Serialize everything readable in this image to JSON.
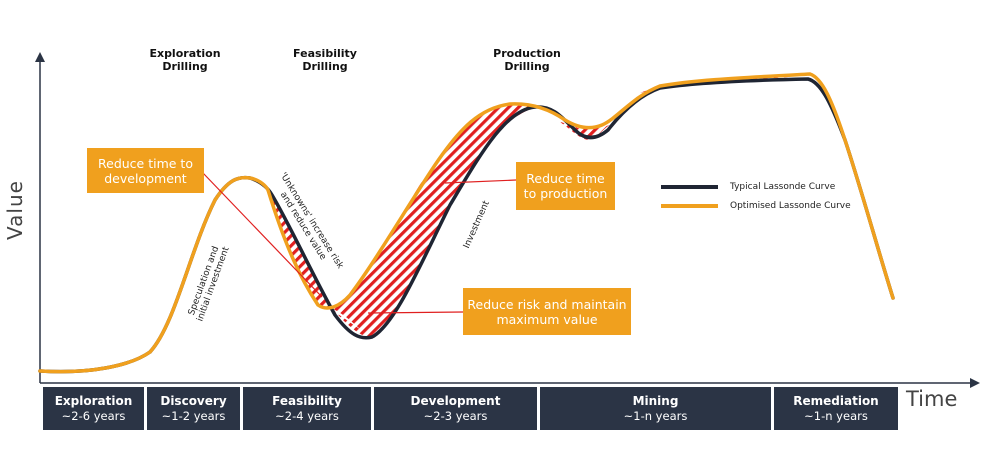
{
  "axis": {
    "y_label": "Value",
    "x_label": "Time"
  },
  "stages": {
    "exploration_drilling": "Exploration\nDrilling",
    "feasibility_drilling": "Feasibility\nDrilling",
    "production_drilling": "Production\nDrilling"
  },
  "phases": [
    {
      "name": "Exploration",
      "duration": "~2-6 years"
    },
    {
      "name": "Discovery",
      "duration": "~1-2 years"
    },
    {
      "name": "Feasibility",
      "duration": "~2-4 years"
    },
    {
      "name": "Development",
      "duration": "~2-3 years"
    },
    {
      "name": "Mining",
      "duration": "~1-n years"
    },
    {
      "name": "Remediation",
      "duration": "~1-n years"
    }
  ],
  "callouts": {
    "development": "Reduce time to\ndevelopment",
    "production": "Reduce time\nto production",
    "risk": "Reduce risk and maintain\nmaximum value"
  },
  "annotations": {
    "speculation": "Speculation and\ninitial investment",
    "unknowns": "'Unknowns' increase risk\nand reduce value",
    "investment": "Investment"
  },
  "legend": {
    "typical": "Typical Lassonde Curve",
    "optimised": "Optimised Lassonde Curve"
  },
  "colors": {
    "typical": "#1f2533",
    "optimised": "#f0a01e",
    "hatch": "#e02020",
    "phase_bg": "#2b3445",
    "callout_bg": "#f0a01e"
  }
}
